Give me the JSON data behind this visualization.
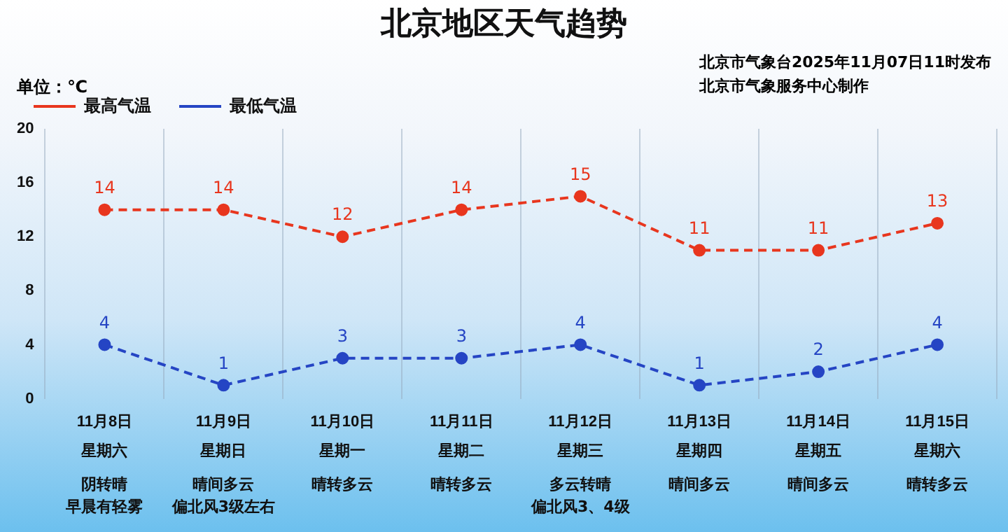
{
  "chart_data": {
    "type": "line",
    "title": "北京地区天气趋势",
    "annotations": [
      "单位：℃",
      "北京市气象台2025年11月07日11时发布",
      "北京市气象服务中心制作",
      "星期六",
      "阴转晴",
      "早晨有轻雾",
      "星期日",
      "晴间多云",
      "偏北风3级左右",
      "星期一",
      "晴转多云",
      "星期二",
      "晴转多云",
      "星期三",
      "多云转晴",
      "偏北风3、4级",
      "星期四",
      "晴间多云",
      "星期五",
      "晴间多云",
      "星期六",
      "晴转多云"
    ],
    "categories": [
      "11月8日",
      "11月9日",
      "11月10日",
      "11月11日",
      "11月12日",
      "11月13日",
      "11月14日",
      "11月15日"
    ],
    "series": [
      {
        "name": "最高气温",
        "color": "#e8361e",
        "values": [
          14,
          14,
          12,
          14,
          15,
          11,
          11,
          13
        ]
      },
      {
        "name": "最低气温",
        "color": "#2545c4",
        "values": [
          4,
          1,
          3,
          3,
          4,
          1,
          2,
          4
        ]
      }
    ],
    "ylim": [
      0,
      20
    ],
    "yticks": [
      0,
      4,
      8,
      12,
      16,
      20
    ],
    "grid": "x",
    "legend": "top left",
    "marker": "circle",
    "line_style": "dashed",
    "data_labels": true
  }
}
